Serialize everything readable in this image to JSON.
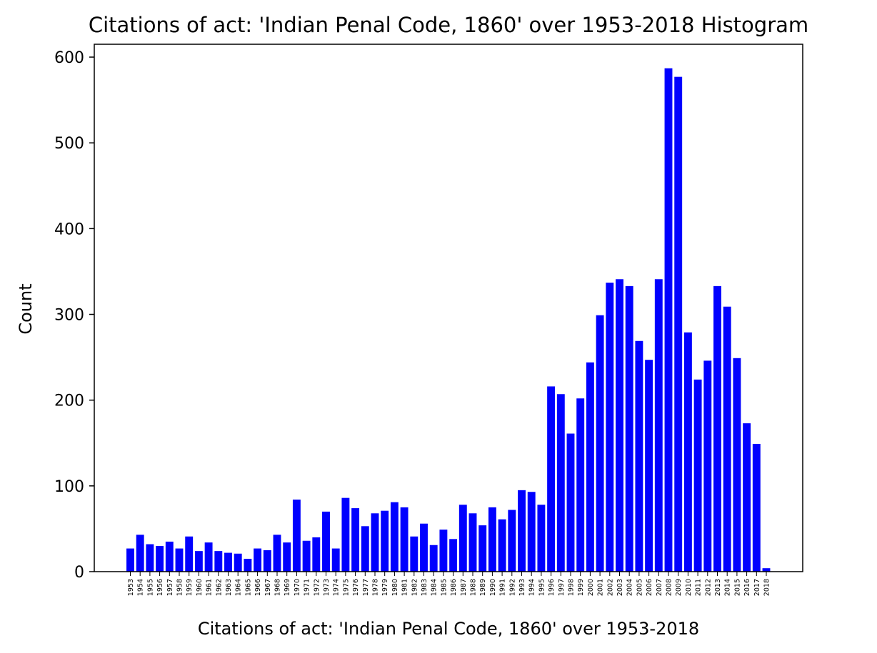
{
  "chart_data": {
    "type": "bar",
    "title": "Citations of act: 'Indian Penal Code, 1860' over 1953-2018 Histogram",
    "xlabel": "Citations of act: 'Indian Penal Code, 1860' over 1953-2018",
    "ylabel": "Count",
    "ylim": [
      0,
      615
    ],
    "yticks": [
      "0",
      "100",
      "200",
      "300",
      "400",
      "500",
      "600"
    ],
    "grid": false,
    "bar_color": "#0000ff",
    "categories": [
      "1953",
      "1954",
      "1955",
      "1956",
      "1957",
      "1958",
      "1959",
      "1960",
      "1961",
      "1962",
      "1963",
      "1964",
      "1965",
      "1966",
      "1967",
      "1968",
      "1969",
      "1970",
      "1971",
      "1972",
      "1973",
      "1974",
      "1975",
      "1976",
      "1977",
      "1978",
      "1979",
      "1980",
      "1981",
      "1982",
      "1983",
      "1984",
      "1985",
      "1986",
      "1987",
      "1988",
      "1989",
      "1990",
      "1991",
      "1992",
      "1993",
      "1994",
      "1995",
      "1996",
      "1997",
      "1998",
      "1999",
      "2000",
      "2001",
      "2002",
      "2003",
      "2004",
      "2005",
      "2006",
      "2007",
      "2008",
      "2009",
      "2010",
      "2011",
      "2012",
      "2013",
      "2014",
      "2015",
      "2016",
      "2017",
      "2018"
    ],
    "values": [
      27,
      43,
      32,
      30,
      35,
      27,
      41,
      24,
      34,
      24,
      22,
      21,
      15,
      27,
      25,
      43,
      34,
      84,
      36,
      40,
      70,
      27,
      86,
      74,
      53,
      68,
      71,
      81,
      75,
      41,
      56,
      31,
      49,
      38,
      78,
      68,
      54,
      75,
      61,
      72,
      95,
      93,
      78,
      216,
      207,
      161,
      202,
      244,
      299,
      337,
      341,
      333,
      269,
      247,
      341,
      587,
      577,
      279,
      224,
      246,
      333,
      309,
      249,
      173,
      149,
      4
    ]
  }
}
